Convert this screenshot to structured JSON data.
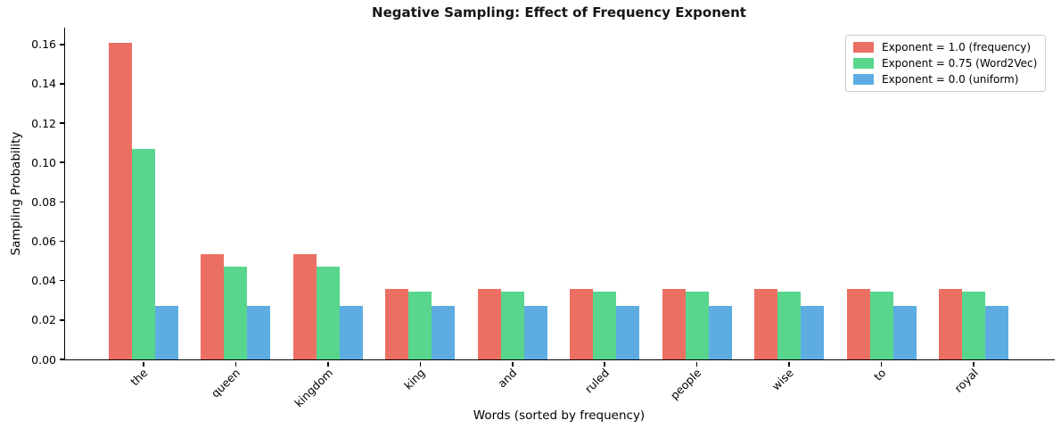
{
  "chart_data": {
    "type": "bar",
    "title": "Negative Sampling: Effect of Frequency Exponent",
    "xlabel": "Words (sorted by frequency)",
    "ylabel": "Sampling Probability",
    "categories": [
      "the",
      "queen",
      "kingdom",
      "king",
      "and",
      "ruled",
      "people",
      "wise",
      "to",
      "royal"
    ],
    "series": [
      {
        "name": "Exponent = 1.0 (frequency)",
        "color": "#EC6F63",
        "values": [
          0.1607,
          0.0536,
          0.0536,
          0.0357,
          0.0357,
          0.0357,
          0.0357,
          0.0357,
          0.0357,
          0.0357
        ]
      },
      {
        "name": "Exponent = 0.75 (Word2Vec)",
        "color": "#58D68D",
        "values": [
          0.1069,
          0.0469,
          0.0469,
          0.0346,
          0.0346,
          0.0346,
          0.0346,
          0.0346,
          0.0346,
          0.0346
        ]
      },
      {
        "name": "Exponent = 0.0 (uniform)",
        "color": "#5DADE2",
        "values": [
          0.027,
          0.027,
          0.027,
          0.027,
          0.027,
          0.027,
          0.027,
          0.027,
          0.027,
          0.027
        ]
      }
    ],
    "yticks": [
      0.0,
      0.02,
      0.04,
      0.06,
      0.08,
      0.1,
      0.12,
      0.14,
      0.16
    ],
    "ylim": [
      0,
      0.1685
    ],
    "grid": false,
    "legend_position": "upper right",
    "axis_color": "#000000"
  }
}
